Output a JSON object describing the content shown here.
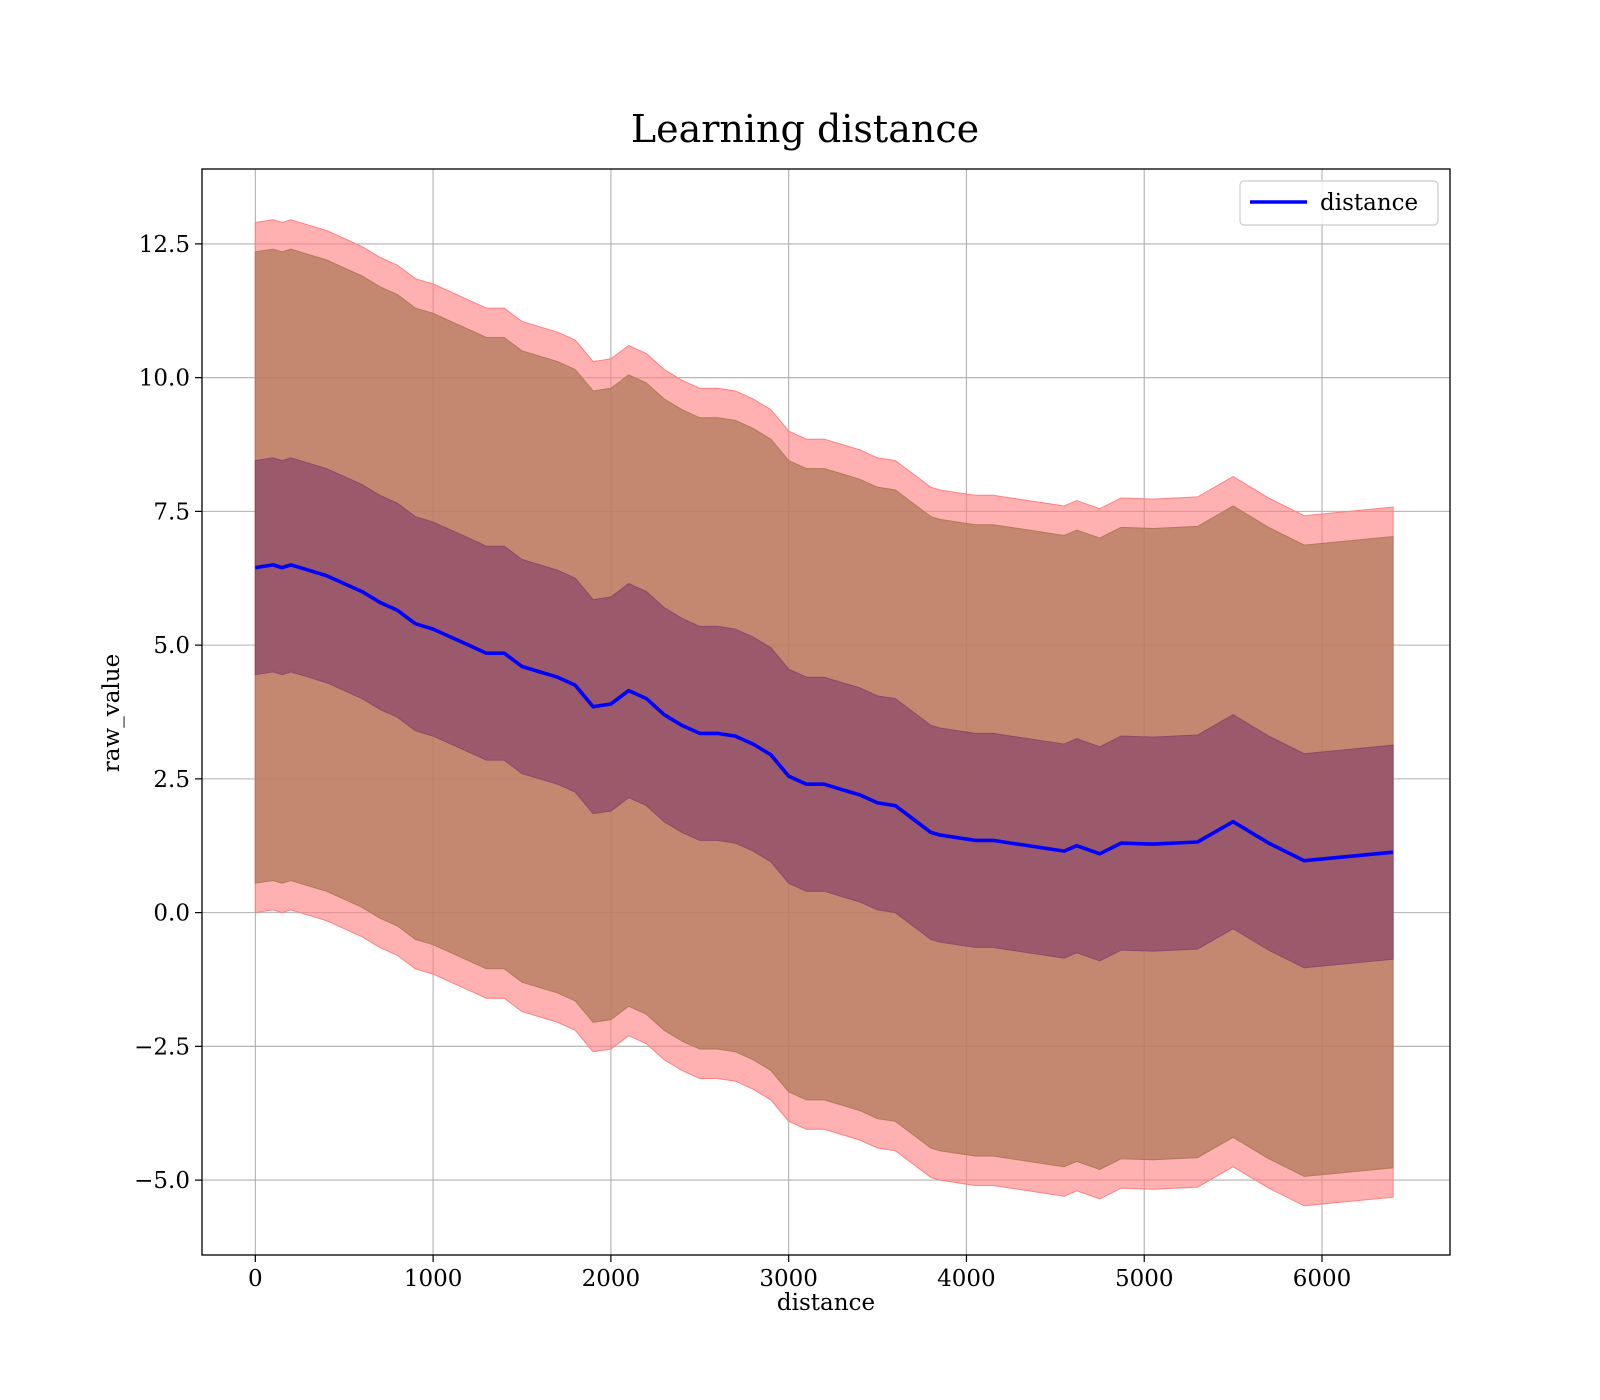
{
  "chart_data": {
    "type": "line",
    "title": "Learning distance",
    "xlabel": "distance",
    "ylabel": "raw_value",
    "xlim": [
      -300,
      6720
    ],
    "ylim": [
      -6.4,
      13.9
    ],
    "xticks": [
      0,
      1000,
      2000,
      3000,
      4000,
      5000,
      6000
    ],
    "xtick_labels": [
      "0",
      "1000",
      "2000",
      "3000",
      "4000",
      "5000",
      "6000"
    ],
    "yticks": [
      -5.0,
      -2.5,
      0.0,
      2.5,
      5.0,
      7.5,
      10.0,
      12.5
    ],
    "ytick_labels": [
      "−5.0",
      "−2.5",
      "0.0",
      "2.5",
      "5.0",
      "7.5",
      "10.0",
      "12.5"
    ],
    "grid": true,
    "legend_position": "top-right",
    "colors": {
      "line": "#0000ff",
      "band_outer": "#ff8080",
      "band_middle": "#b07a5a",
      "band_inner": "#8a4a6a"
    },
    "series": [
      {
        "name": "distance",
        "x": [
          0,
          100,
          150,
          200,
          300,
          400,
          500,
          600,
          700,
          800,
          900,
          1000,
          1100,
          1200,
          1300,
          1400,
          1500,
          1600,
          1700,
          1800,
          1900,
          2000,
          2100,
          2200,
          2300,
          2400,
          2500,
          2600,
          2700,
          2800,
          2900,
          3000,
          3100,
          3200,
          3300,
          3400,
          3500,
          3600,
          3700,
          3800,
          3850,
          3950,
          4050,
          4150,
          4250,
          4550,
          4620,
          4750,
          4870,
          5050,
          5300,
          5500,
          5700,
          5900,
          6400
        ],
        "y": [
          6.45,
          6.5,
          6.45,
          6.5,
          6.4,
          6.3,
          6.15,
          6.0,
          5.8,
          5.65,
          5.4,
          5.3,
          5.15,
          5.0,
          4.85,
          4.85,
          4.6,
          4.5,
          4.4,
          4.25,
          3.85,
          3.9,
          4.15,
          4.0,
          3.7,
          3.5,
          3.35,
          3.35,
          3.3,
          3.15,
          2.95,
          2.55,
          2.4,
          2.4,
          2.3,
          2.2,
          2.05,
          2.0,
          1.75,
          1.5,
          1.45,
          1.4,
          1.35,
          1.35,
          1.3,
          1.15,
          1.25,
          1.1,
          1.3,
          1.28,
          1.32,
          1.7,
          1.3,
          0.97,
          1.13
        ],
        "bands": [
          {
            "name": "",
            "offset": 2.0
          },
          {
            "name": "",
            "offset": 5.9
          },
          {
            "name": "",
            "offset": 6.45
          }
        ]
      }
    ]
  }
}
